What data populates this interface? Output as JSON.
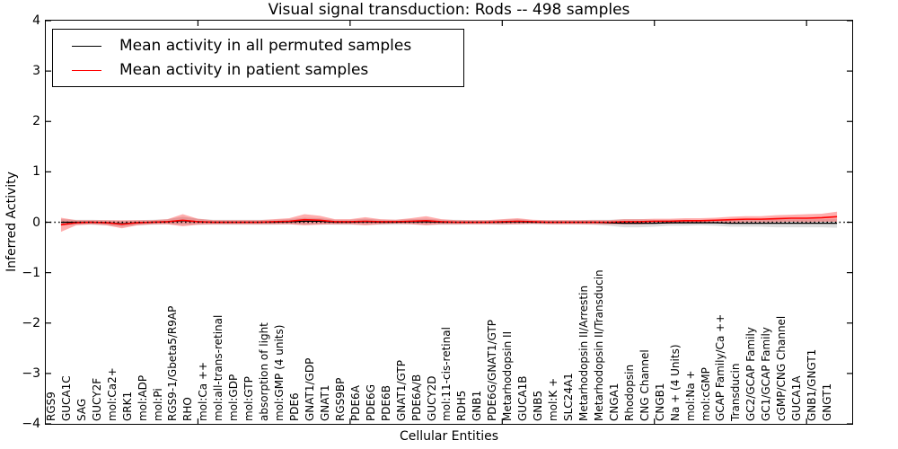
{
  "title": "Visual signal transduction: Rods -- 498 samples",
  "x_axis": {
    "label": "Cellular Entities"
  },
  "y_axis": {
    "label": "Inferred Activity"
  },
  "legend": {
    "items": [
      {
        "label": "Mean activity in all permuted samples",
        "color": "#000000"
      },
      {
        "label": "Mean activity in patient samples",
        "color": "#ff0000"
      }
    ]
  },
  "chart_data": {
    "type": "line",
    "title": "Visual signal transduction: Rods -- 498 samples",
    "xlabel": "Cellular Entities",
    "ylabel": "Inferred Activity",
    "ylim": [
      -4,
      4
    ],
    "xlim": [
      0,
      53
    ],
    "y_ticks": [
      "4",
      "3",
      "2",
      "1",
      "0",
      "−1",
      "−2",
      "−3",
      "−4"
    ],
    "y_tick_values": [
      4,
      3,
      2,
      1,
      0,
      -1,
      -2,
      -3,
      -4
    ],
    "x_major_tick_positions": [
      10,
      20,
      30,
      40,
      50
    ],
    "grid": false,
    "legend_position": "upper left",
    "reference_line": {
      "y": 0,
      "style": "dotted",
      "color": "#000000"
    },
    "categories": [
      "RGS9",
      "GUCA1C",
      "SAG",
      "GUCY2F",
      "mol:Ca2+",
      "GRK1",
      "mol:ADP",
      "mol:Pi",
      "RGS9-1/Gbeta5/R9AP",
      "RHO",
      "mol:Ca ++",
      "mol:all-trans-retinal",
      "mol:GDP",
      "mol:GTP",
      "absorption of light",
      "mol:GMP (4 units)",
      "PDE6",
      "GNAT1/GDP",
      "GNAT1",
      "RGS9BP",
      "PDE6A",
      "PDE6G",
      "PDE6B",
      "GNAT1/GTP",
      "PDE6A/B",
      "GUCY2D",
      "mol:11-cis-retinal",
      "RDH5",
      "GNB1",
      "PDE6G/GNAT1/GTP",
      "Metarhodopsin II",
      "GUCA1B",
      "GNB5",
      "mol:K +",
      "SLC24A1",
      "Metarhodopsin II/Arrestin",
      "Metarhodopsin II/Transducin",
      "CNGA1",
      "Rhodopsin",
      "CNG Channel",
      "CNGB1",
      "Na + (4 Units)",
      "mol:Na +",
      "mol:cGMP",
      "GCAP Family/Ca ++",
      "Transducin",
      "GC2/GCAP Family",
      "GC1/GCAP Family",
      "cGMP/CNG Channel",
      "GUCA1A",
      "GNB1/GNGT1",
      "GNGT1"
    ],
    "series": [
      {
        "name": "Mean activity in all permuted samples",
        "color": "#000000",
        "band_color": "#888888",
        "band_opacity": 0.28,
        "values": [
          0.0,
          0.0,
          0.0,
          -0.01,
          -0.03,
          -0.01,
          0.0,
          0.01,
          0.03,
          0.01,
          0.0,
          0.0,
          0.0,
          0.0,
          0.0,
          0.01,
          0.02,
          0.02,
          0.0,
          0.0,
          0.01,
          0.0,
          0.0,
          0.01,
          0.01,
          0.0,
          0.0,
          0.0,
          0.0,
          0.0,
          0.01,
          0.0,
          0.0,
          0.0,
          0.0,
          0.0,
          -0.01,
          -0.02,
          -0.02,
          -0.02,
          -0.01,
          -0.01,
          -0.01,
          -0.01,
          -0.02,
          -0.02,
          -0.02,
          -0.02,
          -0.02,
          -0.02,
          -0.02,
          -0.02
        ],
        "band_halfwidth": [
          0.06,
          0.05,
          0.05,
          0.05,
          0.06,
          0.05,
          0.05,
          0.05,
          0.08,
          0.06,
          0.05,
          0.05,
          0.05,
          0.05,
          0.05,
          0.05,
          0.07,
          0.06,
          0.05,
          0.05,
          0.06,
          0.05,
          0.05,
          0.05,
          0.06,
          0.05,
          0.05,
          0.04,
          0.04,
          0.05,
          0.05,
          0.04,
          0.04,
          0.04,
          0.04,
          0.05,
          0.06,
          0.08,
          0.08,
          0.07,
          0.06,
          0.06,
          0.05,
          0.06,
          0.07,
          0.07,
          0.07,
          0.08,
          0.08,
          0.08,
          0.08,
          0.09
        ]
      },
      {
        "name": "Mean activity in patient samples",
        "color": "#ff0000",
        "band_color": "#ff0000",
        "band_opacity": 0.32,
        "values": [
          -0.05,
          -0.01,
          0.0,
          -0.01,
          -0.04,
          -0.01,
          0.0,
          0.01,
          0.04,
          0.01,
          0.0,
          0.0,
          0.0,
          0.0,
          0.01,
          0.02,
          0.05,
          0.04,
          0.01,
          0.01,
          0.02,
          0.01,
          0.01,
          0.02,
          0.03,
          0.01,
          0.0,
          0.0,
          0.0,
          0.01,
          0.02,
          0.01,
          0.0,
          0.0,
          0.0,
          0.0,
          0.0,
          0.01,
          0.01,
          0.02,
          0.02,
          0.03,
          0.03,
          0.04,
          0.05,
          0.06,
          0.06,
          0.07,
          0.08,
          0.08,
          0.09,
          0.11
        ],
        "band_halfwidth": [
          0.14,
          0.05,
          0.04,
          0.05,
          0.08,
          0.05,
          0.04,
          0.05,
          0.12,
          0.06,
          0.04,
          0.04,
          0.04,
          0.04,
          0.05,
          0.06,
          0.11,
          0.09,
          0.05,
          0.05,
          0.08,
          0.05,
          0.04,
          0.06,
          0.09,
          0.05,
          0.04,
          0.04,
          0.04,
          0.05,
          0.06,
          0.04,
          0.04,
          0.04,
          0.04,
          0.04,
          0.04,
          0.05,
          0.05,
          0.05,
          0.05,
          0.05,
          0.05,
          0.05,
          0.06,
          0.06,
          0.06,
          0.07,
          0.07,
          0.08,
          0.08,
          0.1
        ]
      }
    ]
  }
}
